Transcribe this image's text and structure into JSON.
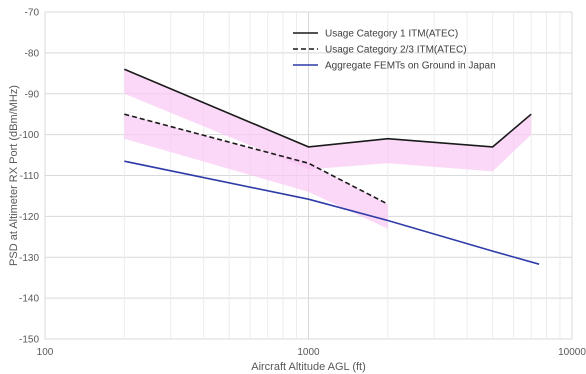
{
  "chart_data": {
    "type": "line",
    "xlabel": "Aircraft Altitude AGL (ft)",
    "ylabel": "PSD at Altimeter RX Port (dBm/MHz)",
    "x_scale": "log",
    "xlim": [
      100,
      10000
    ],
    "ylim": [
      -150,
      -70
    ],
    "x_ticks": [
      100,
      1000,
      10000
    ],
    "x_tick_labels": [
      "100",
      "1000",
      "10000"
    ],
    "y_ticks": [
      -150,
      -140,
      -130,
      -120,
      -110,
      -100,
      -90,
      -80,
      -70
    ],
    "y_tick_labels": [
      "-150",
      "-140",
      "-130",
      "-120",
      "-110",
      "-100",
      "-90",
      "-80",
      "-70"
    ],
    "grid": true,
    "legend_position": "top-right",
    "series": [
      {
        "name": "Usage Category 1 ITM(ATEC)",
        "color": "#1a1a1a",
        "dash": "solid",
        "x": [
          200,
          1000,
          2000,
          5000,
          7000
        ],
        "y": [
          -84,
          -103,
          -101,
          -103,
          -95
        ],
        "band_lower": [
          -90,
          -108.5,
          -107,
          -109,
          -100
        ],
        "band_upper": [
          -84,
          -103,
          -101,
          -103,
          -95
        ],
        "band_color": "#f9c8f4"
      },
      {
        "name": "Usage Category 2/3 ITM(ATEC)",
        "color": "#1a1a1a",
        "dash": "dashed",
        "x": [
          200,
          1000,
          2000
        ],
        "y": [
          -95,
          -107,
          -117
        ],
        "band_lower": [
          -101,
          -114,
          -123
        ],
        "band_upper": [
          -95,
          -107,
          -117
        ],
        "band_color": "#f9c8f4"
      },
      {
        "name": "Aggregate FEMTs on Ground in Japan",
        "color": "#2f3ca8",
        "dash": "solid",
        "x": [
          200,
          1000,
          2000,
          5000,
          7500
        ],
        "y": [
          -106.5,
          -115.8,
          -121,
          -128.5,
          -131.7
        ]
      }
    ]
  }
}
